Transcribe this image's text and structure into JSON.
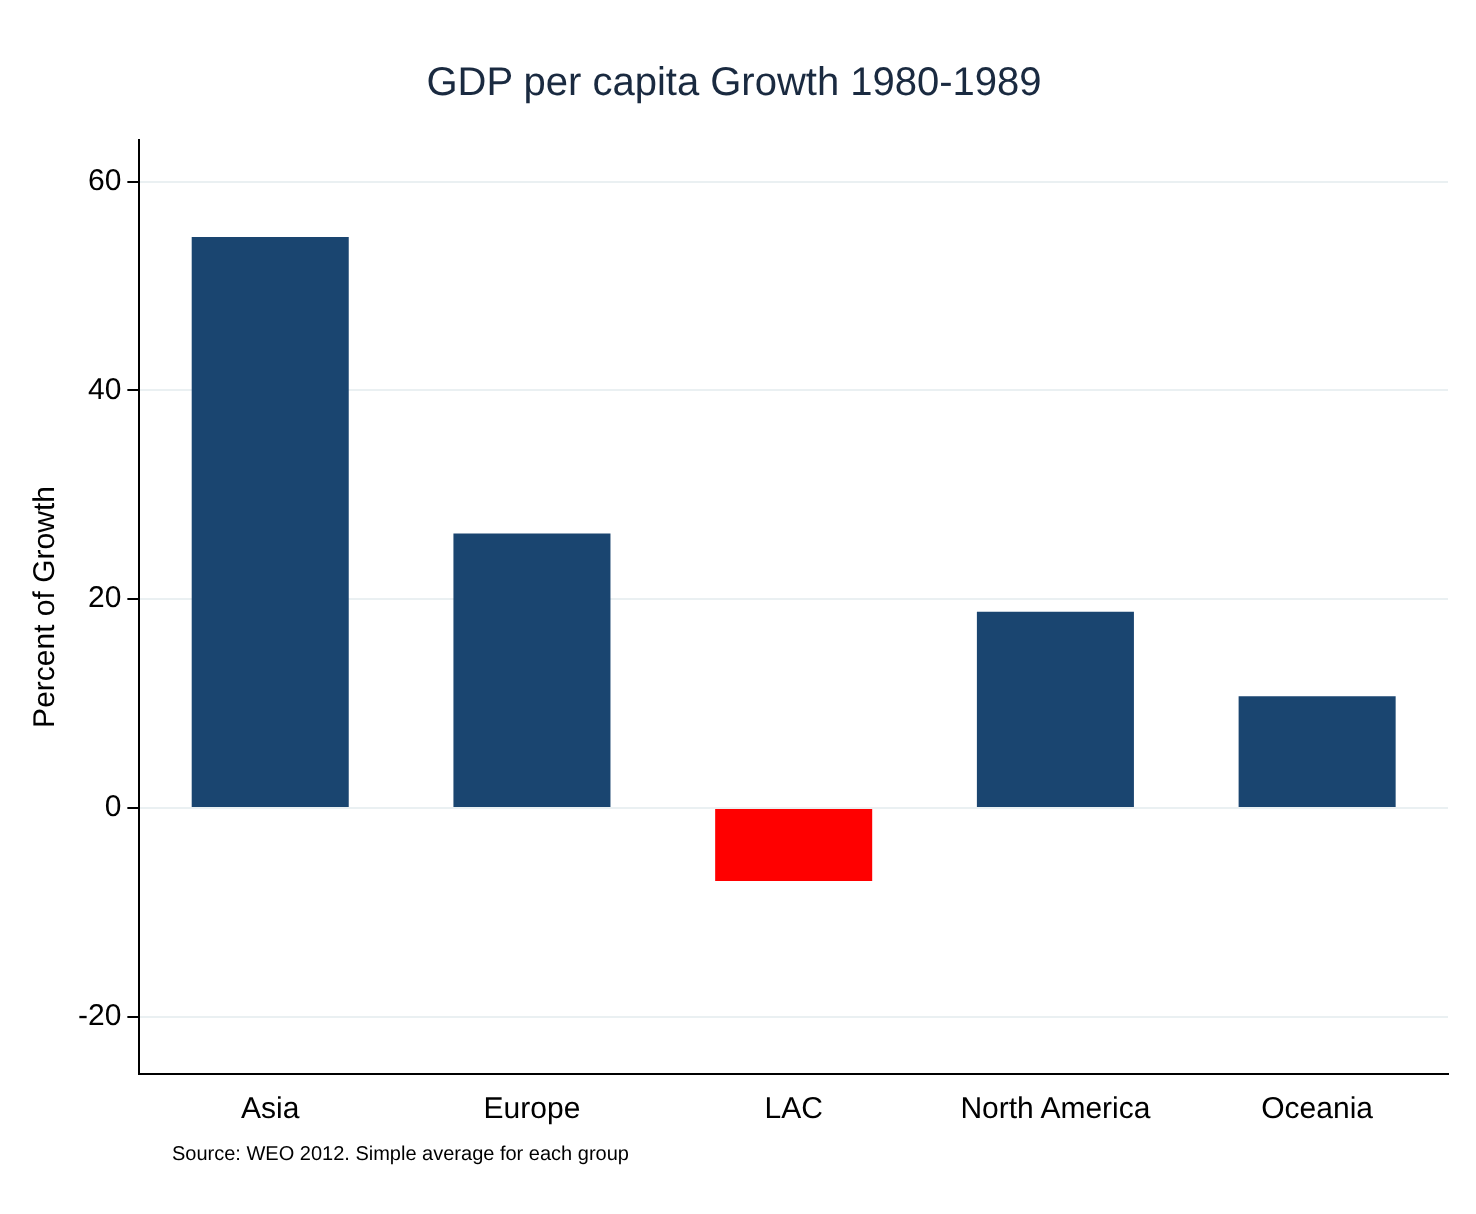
{
  "chart_data": {
    "type": "bar",
    "title": "GDP per capita Growth 1980-1989",
    "ylabel": "Percent of Growth",
    "categories": [
      "Asia",
      "Europe",
      "LAC",
      "North America",
      "Oceania"
    ],
    "values": [
      54.7,
      26.3,
      -7.0,
      18.8,
      10.7
    ],
    "colors": [
      "#1a4570",
      "#1a4570",
      "#ff0000",
      "#1a4570",
      "#1a4570"
    ],
    "ylim": [
      -25.5,
      64
    ],
    "yticks": [
      -20,
      0,
      20,
      40,
      60
    ],
    "grid": "y",
    "legend": false,
    "annotations": [
      "Source: WEO 2012. Simple average for each group"
    ]
  }
}
